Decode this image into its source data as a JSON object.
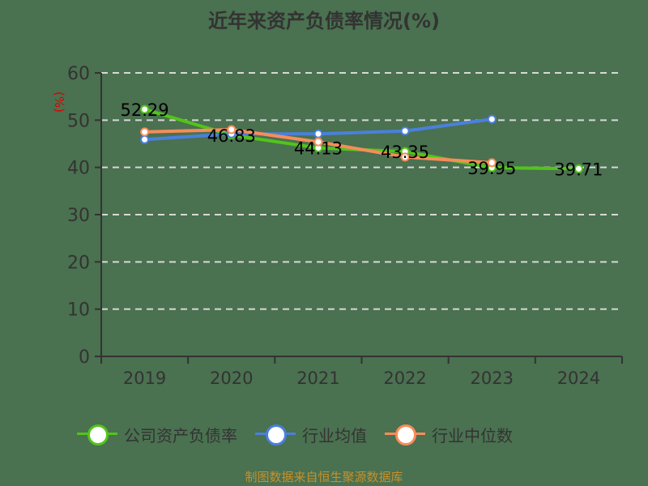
{
  "title": "近年来资产负债率情况(%)",
  "source": "制图数据来自恒生聚源数据库",
  "colors": {
    "background": "#4a7150",
    "company": "#52c41a",
    "industry_avg": "#4a80dc",
    "industry_median": "#f88c5a",
    "ylabel": "#e00000"
  },
  "legend": [
    {
      "label": "公司资产负债率",
      "color": "#52c41a"
    },
    {
      "label": "行业均值",
      "color": "#4a80dc"
    },
    {
      "label": "行业中位数",
      "color": "#f88c5a"
    }
  ],
  "chart_data": {
    "type": "line",
    "title": "近年来资产负债率情况(%)",
    "xlabel": "",
    "ylabel": "(%)",
    "categories": [
      "2019",
      "2020",
      "2021",
      "2022",
      "2023",
      "2024"
    ],
    "ylim": [
      0,
      60
    ],
    "yticks": [
      0,
      10,
      20,
      30,
      40,
      50,
      60
    ],
    "grid": "horizontal dashed",
    "legend_position": "bottom",
    "series": [
      {
        "name": "公司资产负债率",
        "values": [
          52.29,
          46.83,
          44.13,
          43.35,
          39.95,
          39.71
        ],
        "labels": [
          "52.29",
          "46.83",
          "44.13",
          "43.35",
          "39.95",
          "39.71"
        ]
      },
      {
        "name": "行业均值",
        "values": [
          45.9,
          47.1,
          47.1,
          47.7,
          50.2,
          null
        ]
      },
      {
        "name": "行业中位数",
        "values": [
          47.5,
          48.0,
          45.4,
          42.2,
          41.0,
          null
        ]
      }
    ]
  }
}
